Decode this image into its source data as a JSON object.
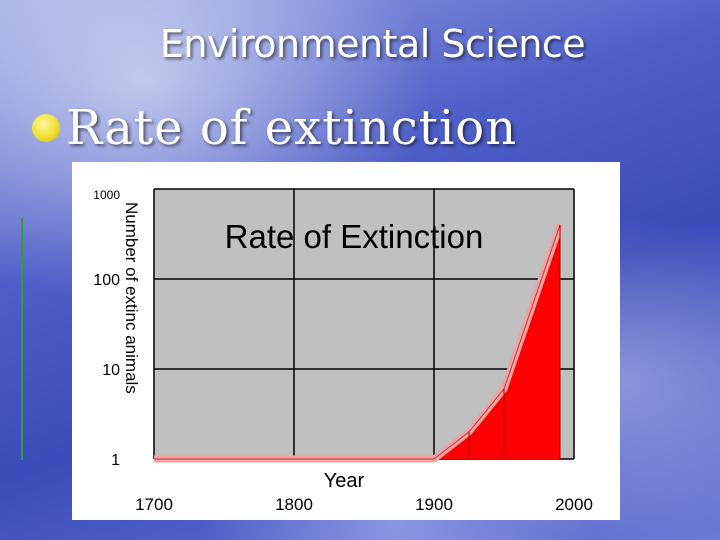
{
  "slide": {
    "title": "Environmental Science",
    "bullet": "Rate of extinction"
  },
  "chart_data": {
    "type": "area",
    "title": "Rate of Extinction",
    "xlabel": "Year",
    "ylabel": "Number of extinc animals",
    "yscale": "log",
    "xlim": [
      1700,
      2000
    ],
    "ylim": [
      1,
      1000
    ],
    "x_ticks": [
      1700,
      1800,
      1900,
      2000
    ],
    "y_ticks": [
      1,
      10,
      100,
      1000
    ],
    "x_tick_labels": [
      "1700",
      "1800",
      "1900",
      "2000"
    ],
    "y_tick_labels": [
      "1",
      "10",
      "100",
      "1000"
    ],
    "grid": true,
    "series": [
      {
        "x": [
          1700,
          1900,
          1925,
          1950,
          1990
        ],
        "y": [
          1,
          1,
          2,
          6,
          400
        ],
        "color": "#ff0000",
        "edge_color": "#f4a0a0"
      }
    ]
  }
}
